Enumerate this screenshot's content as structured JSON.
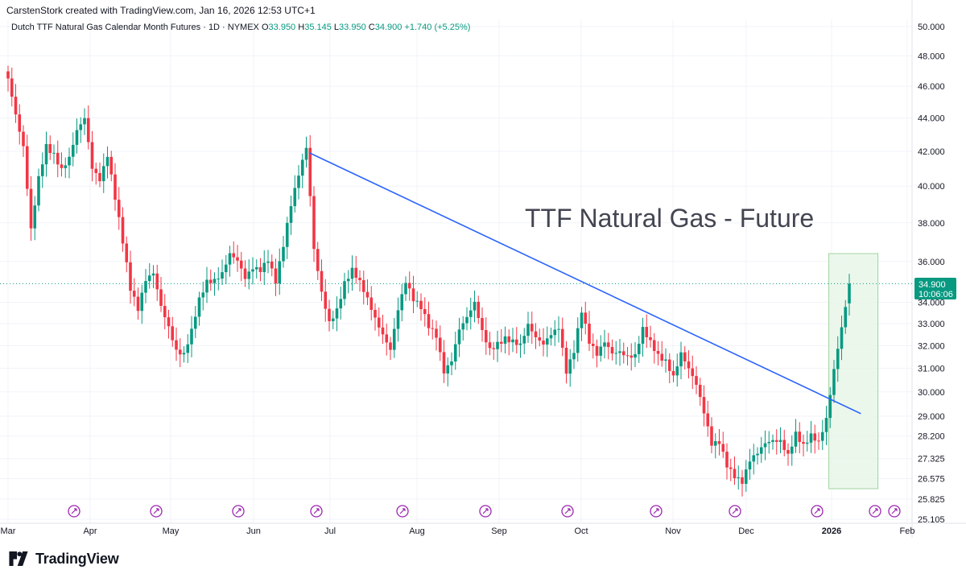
{
  "header": {
    "created_by": "CarstenStork created with TradingView.com, Jan 16, 2026 12:53 UTC+1"
  },
  "legend": {
    "symbol": "Dutch TTF Natural Gas Calendar Month Futures · 1D · NYMEX",
    "open_label": "O",
    "open": "33.950",
    "high_label": "H",
    "high": "35.145",
    "low_label": "L",
    "low": "33.950",
    "close_label": "C",
    "close": "34.900",
    "change": "+1.740 (+5.25%)"
  },
  "price_label": {
    "price": "34.900",
    "countdown": "10:06:06"
  },
  "annotation": "TTF Natural Gas - Future",
  "footer": {
    "brand": "TradingView"
  },
  "colors": {
    "up": "#089981",
    "down": "#f23645",
    "trendline": "#2962ff",
    "highlight_fill": "#e6f4e6",
    "highlight_border": "#9fd49f",
    "event_icon": "#9c27b0"
  },
  "icons": [
    "event-marker-icon",
    "tradingview-logo-icon"
  ],
  "chart_data": {
    "type": "candlestick",
    "interval": "1D",
    "y_scale": "logarithmic",
    "ylim": [
      25.105,
      50.0
    ],
    "grid": true,
    "y_ticks": [
      "50.000",
      "48.000",
      "46.000",
      "44.000",
      "42.000",
      "40.000",
      "38.000",
      "36.000",
      "34.000",
      "33.000",
      "32.000",
      "31.000",
      "30.000",
      "29.000",
      "28.200",
      "27.325",
      "26.575",
      "25.825",
      "25.105"
    ],
    "x_ticks": [
      "Mar",
      "Apr",
      "May",
      "Jun",
      "Jul",
      "Aug",
      "Sep",
      "Oct",
      "Nov",
      "Dec",
      "2026",
      "Feb"
    ],
    "close_series": [
      [
        0,
        46.5
      ],
      [
        2,
        44.0
      ],
      [
        4,
        42.0
      ],
      [
        6,
        37.5
      ],
      [
        8,
        40.5
      ],
      [
        10,
        42.5
      ],
      [
        12,
        42.0
      ],
      [
        14,
        41.0
      ],
      [
        16,
        41.5
      ],
      [
        18,
        43.0
      ],
      [
        20,
        43.8
      ],
      [
        22,
        41.0
      ],
      [
        24,
        40.5
      ],
      [
        26,
        42.0
      ],
      [
        28,
        39.5
      ],
      [
        30,
        37.0
      ],
      [
        32,
        34.5
      ],
      [
        34,
        33.5
      ],
      [
        36,
        35.0
      ],
      [
        38,
        35.5
      ],
      [
        40,
        34.0
      ],
      [
        42,
        33.0
      ],
      [
        44,
        31.8
      ],
      [
        46,
        31.5
      ],
      [
        48,
        32.5
      ],
      [
        50,
        34.0
      ],
      [
        52,
        35.0
      ],
      [
        54,
        35.2
      ],
      [
        56,
        35.6
      ],
      [
        58,
        36.5
      ],
      [
        60,
        36.0
      ],
      [
        62,
        35.0
      ],
      [
        64,
        35.5
      ],
      [
        66,
        35.5
      ],
      [
        68,
        36.2
      ],
      [
        70,
        35.2
      ],
      [
        72,
        37.0
      ],
      [
        74,
        39.0
      ],
      [
        76,
        40.5
      ],
      [
        78,
        42.0
      ],
      [
        80,
        36.5
      ],
      [
        82,
        34.5
      ],
      [
        84,
        33.2
      ],
      [
        86,
        33.8
      ],
      [
        88,
        35.0
      ],
      [
        90,
        35.5
      ],
      [
        92,
        34.8
      ],
      [
        94,
        34.0
      ],
      [
        96,
        33.2
      ],
      [
        98,
        32.6
      ],
      [
        100,
        32.0
      ],
      [
        102,
        33.8
      ],
      [
        104,
        35.0
      ],
      [
        106,
        34.0
      ],
      [
        108,
        33.6
      ],
      [
        110,
        32.8
      ],
      [
        112,
        32.5
      ],
      [
        114,
        31.0
      ],
      [
        116,
        31.5
      ],
      [
        118,
        32.8
      ],
      [
        120,
        33.2
      ],
      [
        122,
        33.8
      ],
      [
        124,
        32.5
      ],
      [
        126,
        31.8
      ],
      [
        128,
        32.2
      ],
      [
        130,
        32.5
      ],
      [
        132,
        32.3
      ],
      [
        134,
        32.0
      ],
      [
        136,
        32.8
      ],
      [
        138,
        32.2
      ],
      [
        140,
        32.0
      ],
      [
        142,
        32.6
      ],
      [
        144,
        33.0
      ],
      [
        146,
        31.0
      ],
      [
        148,
        31.8
      ],
      [
        150,
        33.5
      ],
      [
        152,
        32.0
      ],
      [
        154,
        31.5
      ],
      [
        156,
        32.2
      ],
      [
        158,
        31.8
      ],
      [
        160,
        31.9
      ],
      [
        162,
        31.6
      ],
      [
        164,
        31.5
      ],
      [
        166,
        32.6
      ],
      [
        168,
        32.0
      ],
      [
        170,
        31.5
      ],
      [
        172,
        31.4
      ],
      [
        174,
        30.8
      ],
      [
        176,
        31.8
      ],
      [
        178,
        31.0
      ],
      [
        180,
        30.2
      ],
      [
        182,
        29.0
      ],
      [
        184,
        27.8
      ],
      [
        186,
        28.0
      ],
      [
        188,
        27.2
      ],
      [
        190,
        26.8
      ],
      [
        192,
        26.5
      ],
      [
        194,
        27.2
      ],
      [
        196,
        27.4
      ],
      [
        198,
        27.8
      ],
      [
        200,
        28.0
      ],
      [
        202,
        28.1
      ],
      [
        204,
        27.6
      ],
      [
        206,
        28.4
      ],
      [
        208,
        27.8
      ],
      [
        210,
        28.1
      ],
      [
        212,
        27.8
      ],
      [
        214,
        28.8
      ],
      [
        216,
        31.0
      ],
      [
        218,
        33.0
      ],
      [
        220,
        34.9
      ]
    ],
    "trendline": {
      "from": [
        "2025-06-23",
        41.9
      ],
      "to": [
        "2026-01-13",
        29.1
      ]
    },
    "highlight": {
      "from": [
        "2025-12-31",
        36.4
      ],
      "to": [
        "2026-01-20",
        26.2
      ]
    },
    "last_price": 34.9
  }
}
